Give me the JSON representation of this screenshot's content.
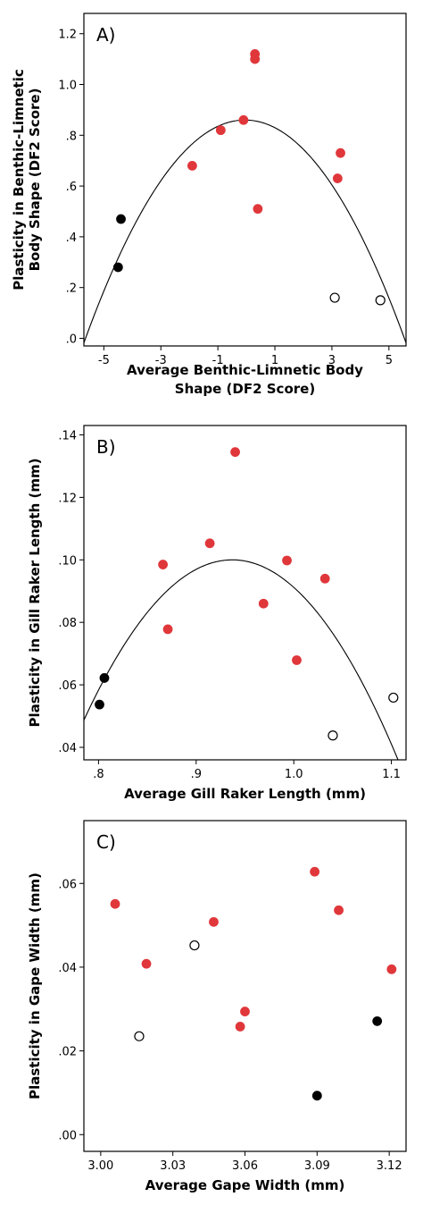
{
  "chart_data": [
    {
      "type": "scatter",
      "panel_label": "A)",
      "xlabel": [
        "Average Benthic-Limnetic Body",
        "Shape (DF2 Score)"
      ],
      "ylabel": [
        "Plasticity in Benthic-Limnetic",
        "Body Shape (DF2 Score)"
      ],
      "xlim": [
        -5.7,
        5.6
      ],
      "ylim": [
        -0.03,
        1.28
      ],
      "xticks": [
        -5,
        -3,
        -1,
        1,
        3,
        5
      ],
      "xtick_labels": [
        "-5",
        "-3",
        "-1",
        "1",
        "3",
        "5"
      ],
      "yticks": [
        0,
        0.2,
        0.4,
        0.6,
        0.8,
        1.0,
        1.2
      ],
      "ytick_labels": [
        ".0",
        ".2",
        ".4",
        ".6",
        ".8",
        "1.0",
        "1.2"
      ],
      "series": [
        {
          "color": "#e0373b",
          "fill": true,
          "points": [
            [
              0.3,
              1.12
            ],
            [
              0.3,
              1.1
            ],
            [
              -0.1,
              0.86
            ],
            [
              -0.9,
              0.82
            ],
            [
              -1.9,
              0.68
            ],
            [
              0.4,
              0.51
            ],
            [
              3.3,
              0.73
            ],
            [
              3.2,
              0.63
            ]
          ]
        },
        {
          "color": "#000000",
          "fill": true,
          "points": [
            [
              -4.4,
              0.47
            ],
            [
              -4.5,
              0.28
            ]
          ]
        },
        {
          "color": "#000000",
          "fill": false,
          "points": [
            [
              3.1,
              0.16
            ],
            [
              4.7,
              0.15
            ]
          ]
        }
      ],
      "curve": {
        "kind": "quadratic",
        "vertex_x": -0.05,
        "vertex_y": 0.86,
        "a": -0.0275
      }
    },
    {
      "type": "scatter",
      "panel_label": "B)",
      "xlabel": [
        "Average Gill Raker Length (mm)"
      ],
      "ylabel": [
        "Plasticity in Gill Raker Length (mm)"
      ],
      "xlim": [
        0.785,
        1.115
      ],
      "ylim": [
        0.036,
        0.143
      ],
      "xticks": [
        0.8,
        0.9,
        1.0,
        1.1
      ],
      "xtick_labels": [
        ".8",
        ".9",
        "1.0",
        "1.1"
      ],
      "yticks": [
        0.04,
        0.06,
        0.08,
        0.1,
        0.12,
        0.14
      ],
      "ytick_labels": [
        ".04",
        ".06",
        ".08",
        ".10",
        ".12",
        ".14"
      ],
      "series": [
        {
          "color": "#e0373b",
          "fill": true,
          "points": [
            [
              0.94,
              0.1345
            ],
            [
              0.914,
              0.1053
            ],
            [
              0.866,
              0.0985
            ],
            [
              0.993,
              0.0998
            ],
            [
              1.032,
              0.094
            ],
            [
              0.871,
              0.0778
            ],
            [
              0.969,
              0.086
            ],
            [
              1.003,
              0.0679
            ]
          ]
        },
        {
          "color": "#000000",
          "fill": true,
          "points": [
            [
              0.806,
              0.0622
            ],
            [
              0.801,
              0.0537
            ]
          ]
        },
        {
          "color": "#000000",
          "fill": false,
          "points": [
            [
              1.04,
              0.0438
            ],
            [
              1.102,
              0.0559
            ]
          ]
        }
      ],
      "curve": {
        "kind": "quadratic",
        "vertex_x": 0.937,
        "vertex_y": 0.1,
        "a": -2.22
      }
    },
    {
      "type": "scatter",
      "panel_label": "C)",
      "xlabel": [
        "Average Gape Width (mm)"
      ],
      "ylabel": [
        "Plasticity in Gape Width (mm)"
      ],
      "xlim": [
        2.993,
        3.127
      ],
      "ylim": [
        -0.004,
        0.075
      ],
      "xticks": [
        3.0,
        3.03,
        3.06,
        3.09,
        3.12
      ],
      "xtick_labels": [
        "3.00",
        "3.03",
        "3.06",
        "3.09",
        "3.12"
      ],
      "yticks": [
        0.0,
        0.02,
        0.04,
        0.06
      ],
      "ytick_labels": [
        ".00",
        ".02",
        ".04",
        ".06"
      ],
      "series": [
        {
          "color": "#e0373b",
          "fill": true,
          "points": [
            [
              3.006,
              0.0551
            ],
            [
              3.019,
              0.0408
            ],
            [
              3.047,
              0.0508
            ],
            [
              3.058,
              0.0258
            ],
            [
              3.06,
              0.0294
            ],
            [
              3.089,
              0.0628
            ],
            [
              3.099,
              0.0536
            ],
            [
              3.121,
              0.0395
            ]
          ]
        },
        {
          "color": "#000000",
          "fill": false,
          "points": [
            [
              3.016,
              0.0235
            ],
            [
              3.039,
              0.0452
            ]
          ]
        },
        {
          "color": "#000000",
          "fill": true,
          "points": [
            [
              3.09,
              0.0093
            ],
            [
              3.115,
              0.0271
            ]
          ]
        }
      ]
    }
  ]
}
